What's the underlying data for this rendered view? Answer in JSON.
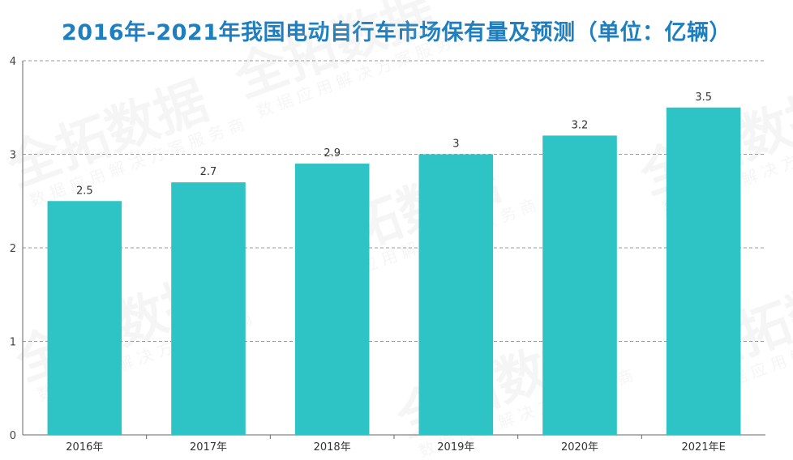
{
  "title": "2016年-2021年我国电动自行车市场保有量及预测（单位：亿辆）",
  "watermark": {
    "brand": "全拓数据",
    "tagline": "数据应用解决方案服务商"
  },
  "colors": {
    "bar": "#2ec4c6",
    "title": "#1e7fc0",
    "grid": "#9a9a9a",
    "axis": "#666666"
  },
  "chart_data": {
    "type": "bar",
    "title": "2016年-2021年我国电动自行车市场保有量及预测（单位：亿辆）",
    "categories": [
      "2016年",
      "2017年",
      "2018年",
      "2019年",
      "2020年",
      "2021年E"
    ],
    "values": [
      2.5,
      2.7,
      2.9,
      3,
      3.2,
      3.5
    ],
    "data_labels": [
      "2.5",
      "2.7",
      "2.9",
      "3",
      "3.2",
      "3.5"
    ],
    "y_ticks": [
      "0",
      "1",
      "2",
      "3",
      "4"
    ],
    "ylim": [
      0,
      4
    ],
    "xlabel": "",
    "ylabel": "",
    "grid": "horizontal dashed",
    "legend": "none"
  }
}
